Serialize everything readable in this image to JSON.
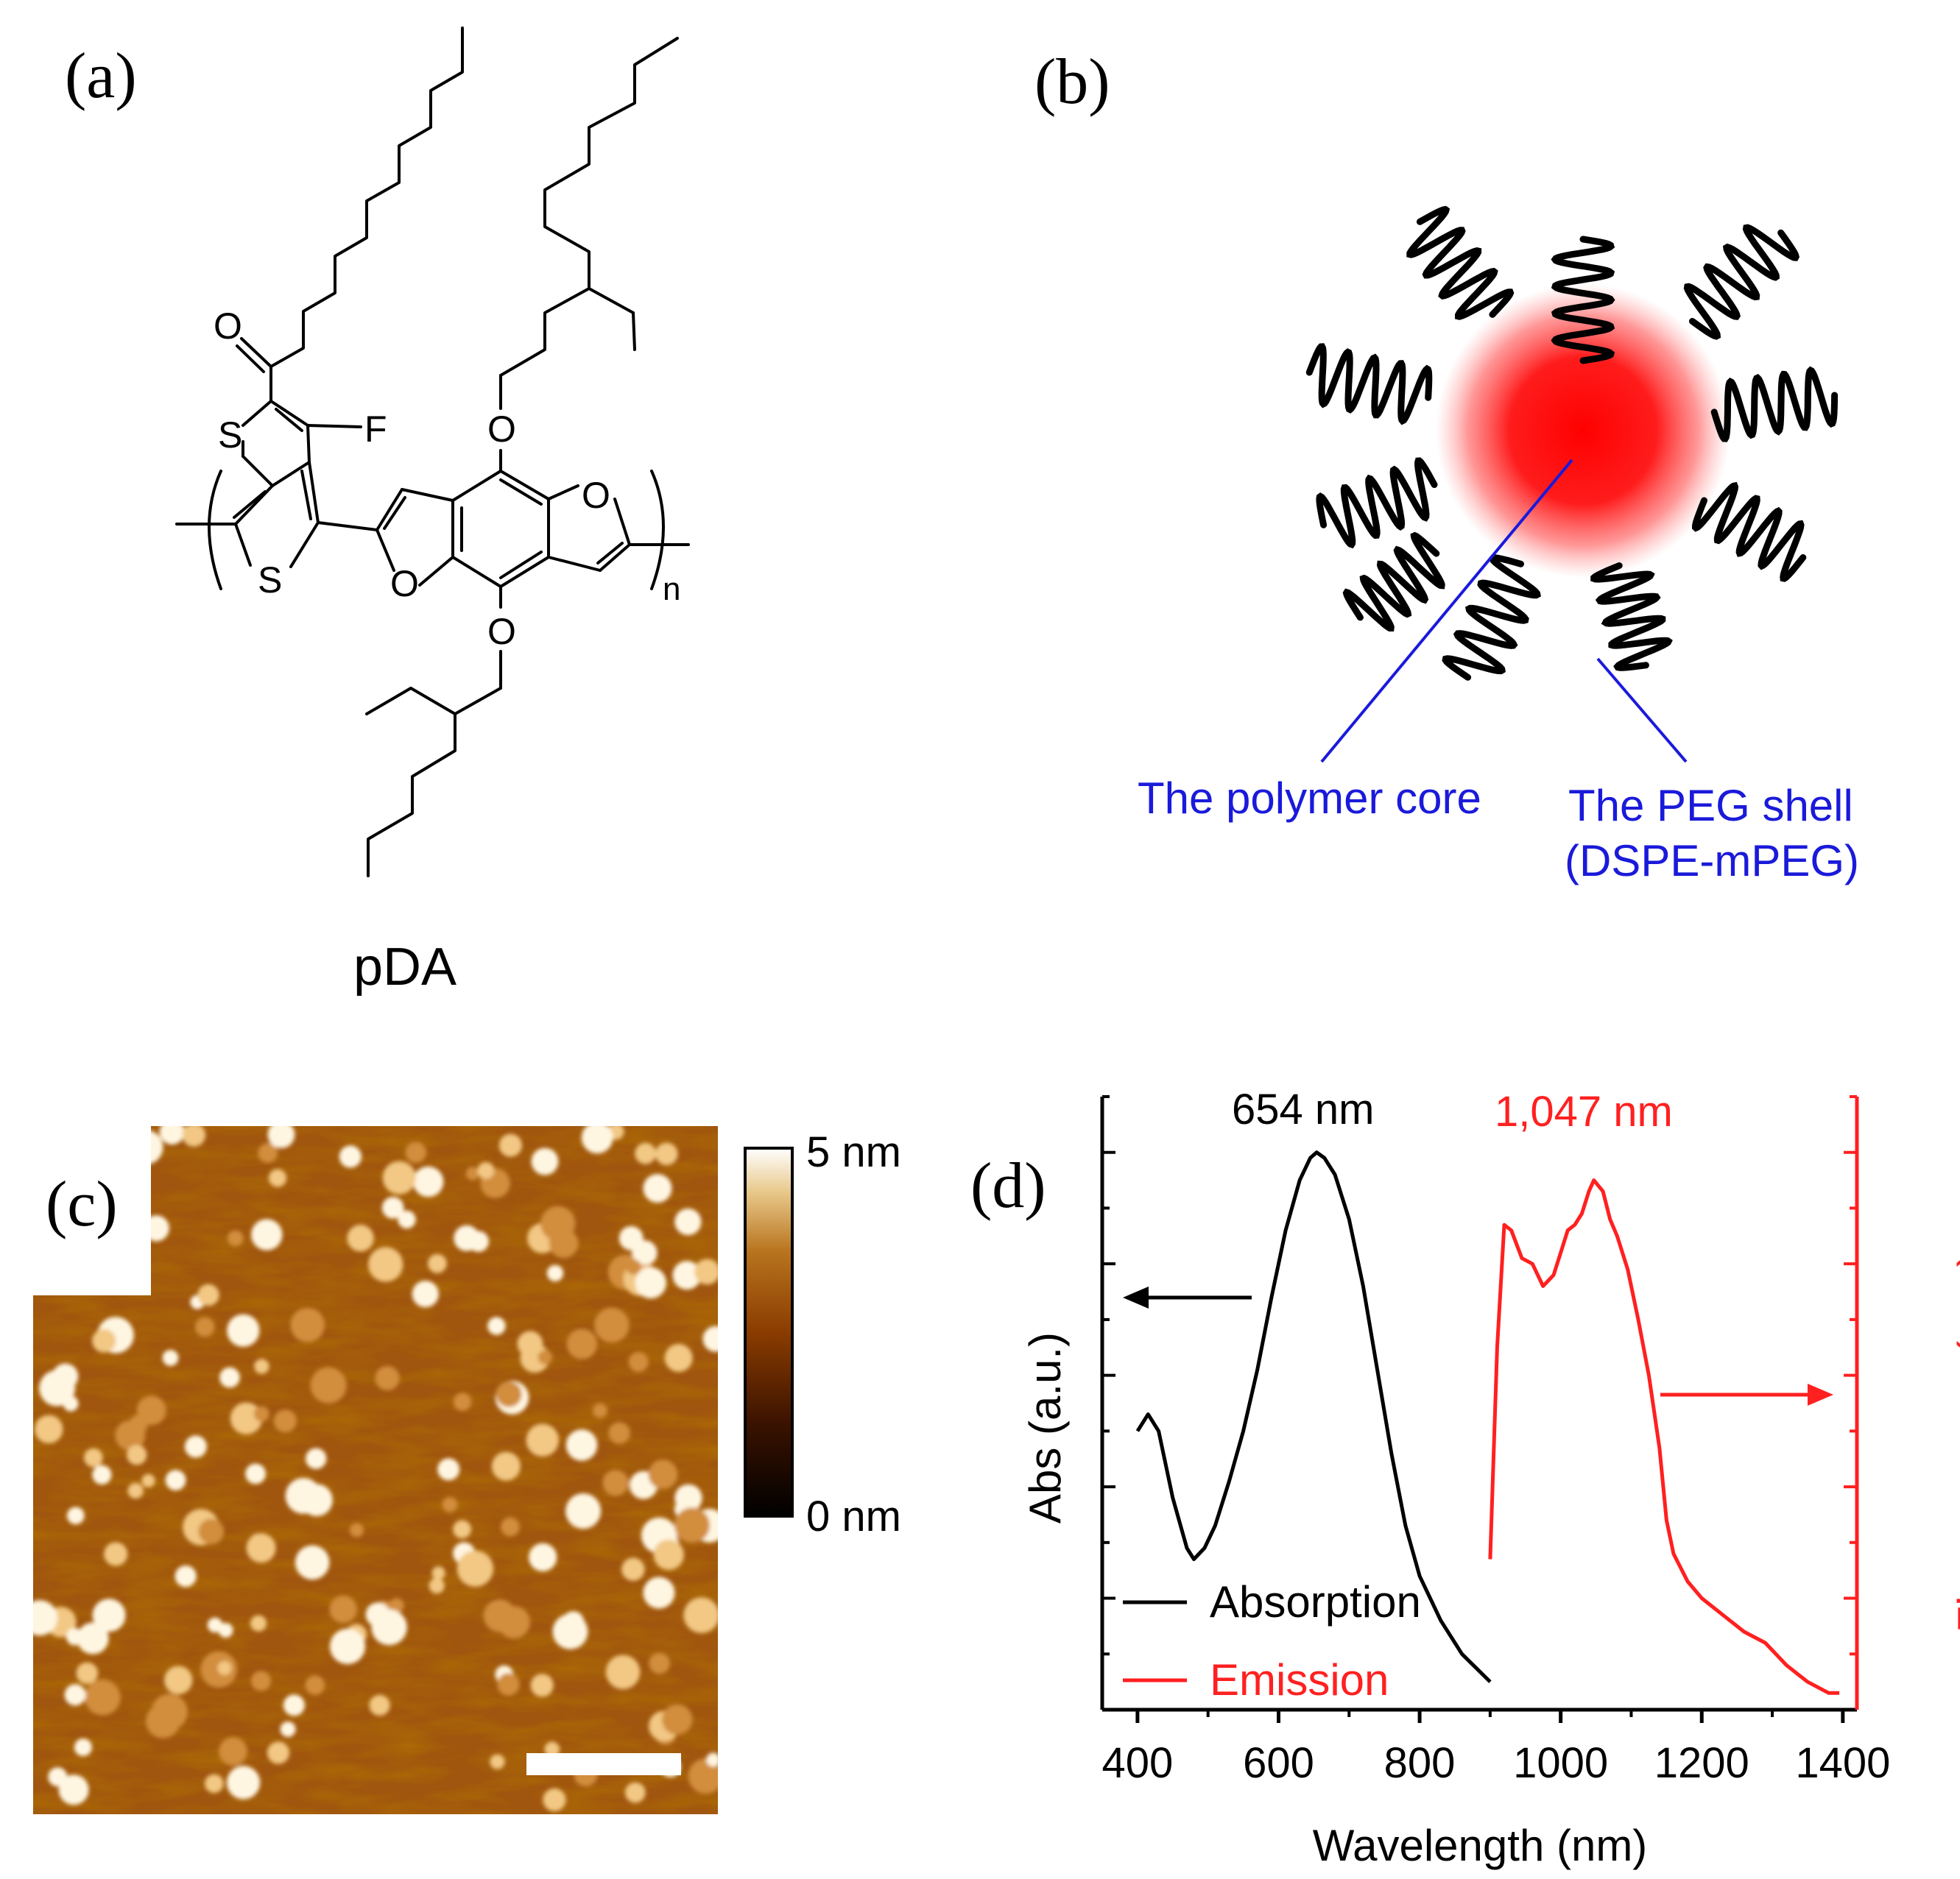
{
  "panels": {
    "a": {
      "label": "(a)",
      "compound_name": "pDA",
      "atoms": {
        "carbonyl_O": "O",
        "fluorine": "F",
        "thiophene_S1": "S",
        "thiophene_S2": "S",
        "alkoxy_O_top": "O",
        "alkoxy_O_bottom": "O",
        "furan_O_right": "O",
        "furan_O_left": "O",
        "repeat_n": "n"
      }
    },
    "b": {
      "label": "(b)",
      "core_label": "The polymer core",
      "shell_label_line1": "The PEG shell",
      "shell_label_line2": "(DSPE-mPEG)"
    },
    "c": {
      "label": "(c)",
      "colorbar_max": "5 nm",
      "colorbar_min": "0 nm"
    },
    "d": {
      "label": "(d)"
    }
  },
  "colors": {
    "annotation_blue": "#1a1adb",
    "emission_red": "#ff2020",
    "absorption_black": "#000000",
    "core_red": "#ff1010",
    "afm_dark": "#7a3300",
    "afm_mid": "#a85e14",
    "afm_bright": "#fff4dc"
  },
  "chart_data": {
    "type": "line",
    "title": "",
    "xlabel": "Wavelength (nm)",
    "ylabel_left": "Abs (a.u.)",
    "ylabel_right": "Fluorescence (a.u.)",
    "xlim": [
      350,
      1420
    ],
    "ylim": [
      0,
      1.1
    ],
    "xticks": [
      400,
      600,
      800,
      1000,
      1200,
      1400
    ],
    "xtick_labels": [
      "400",
      "600",
      "800",
      "1000",
      "1200",
      "1400"
    ],
    "annotations": {
      "abs_peak": "654 nm",
      "em_peak": "1,047 nm"
    },
    "legend": {
      "placement": "bottom-left",
      "entries": [
        "Absorption",
        "Emission"
      ]
    },
    "series": [
      {
        "name": "Absorption",
        "color": "#000000",
        "x": [
          400,
          415,
          430,
          450,
          470,
          480,
          495,
          510,
          530,
          550,
          570,
          590,
          610,
          630,
          645,
          654,
          665,
          680,
          700,
          720,
          740,
          760,
          780,
          800,
          830,
          860,
          900
        ],
        "y": [
          0.5,
          0.53,
          0.5,
          0.38,
          0.29,
          0.27,
          0.29,
          0.33,
          0.41,
          0.5,
          0.61,
          0.74,
          0.86,
          0.95,
          0.99,
          1.0,
          0.99,
          0.96,
          0.88,
          0.76,
          0.61,
          0.46,
          0.33,
          0.24,
          0.16,
          0.1,
          0.05
        ]
      },
      {
        "name": "Emission",
        "color": "#ff2020",
        "x": [
          900,
          910,
          920,
          930,
          945,
          960,
          975,
          990,
          1000,
          1010,
          1020,
          1030,
          1040,
          1047,
          1060,
          1070,
          1080,
          1095,
          1110,
          1125,
          1140,
          1150,
          1160,
          1180,
          1200,
          1230,
          1260,
          1290,
          1320,
          1350,
          1380,
          1395
        ],
        "y": [
          0.27,
          0.65,
          0.87,
          0.86,
          0.81,
          0.8,
          0.76,
          0.78,
          0.82,
          0.86,
          0.87,
          0.89,
          0.93,
          0.95,
          0.93,
          0.88,
          0.85,
          0.79,
          0.7,
          0.6,
          0.47,
          0.34,
          0.28,
          0.23,
          0.2,
          0.17,
          0.14,
          0.12,
          0.08,
          0.05,
          0.03,
          0.03
        ]
      }
    ]
  }
}
